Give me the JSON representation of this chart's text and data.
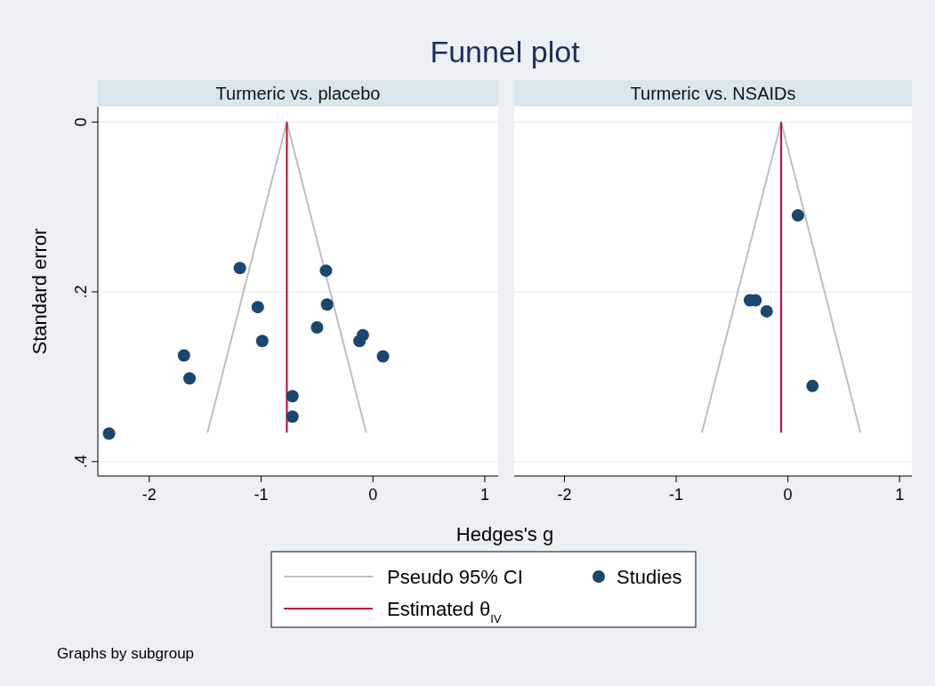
{
  "chart_data": [
    {
      "type": "scatter",
      "title": "Funnel plot",
      "subtitle": "Turmeric vs. placebo",
      "xlabel": "Hedges's g",
      "ylabel": "Standard error",
      "xlim": [
        -2.46,
        1.12
      ],
      "xticks": [
        -2,
        -1,
        0,
        1
      ],
      "ylim": [
        0.417,
        -0.018
      ],
      "yticks": [
        0,
        {
          "value": 0.2,
          "label": ".2"
        },
        {
          "value": 0.4,
          "label": ".4"
        }
      ],
      "grid": "y",
      "legend": "bottom",
      "annotations": [
        "Graphs by subgroup"
      ],
      "series": [
        {
          "name": "Pseudo 95% CI",
          "type": "line",
          "color": "#bfbfbf",
          "x": [
            -1.48,
            -0.77,
            -0.06
          ],
          "values": [
            0.366,
            0,
            0.366
          ]
        },
        {
          "name": "Estimated θ$_{IV}$",
          "type": "line",
          "color": "#c10534",
          "x": [
            -0.77,
            -0.77
          ],
          "values": [
            0,
            0.366
          ]
        },
        {
          "name": "Studies",
          "marker": "circle",
          "color": "#1a476f",
          "x": [
            -1.19,
            -0.42,
            -1.03,
            -0.41,
            -0.5,
            -0.99,
            -0.09,
            -0.12,
            0.09,
            -1.69,
            -1.64,
            -0.72,
            -0.72,
            -2.36
          ],
          "values": [
            0.172,
            0.175,
            0.218,
            0.215,
            0.242,
            0.258,
            0.251,
            0.258,
            0.276,
            0.275,
            0.302,
            0.323,
            0.347,
            0.367
          ]
        }
      ]
    },
    {
      "type": "scatter",
      "subtitle": "Turmeric vs. NSAIDs",
      "xlim": [
        -2.45,
        1.11
      ],
      "xticks": [
        -2,
        -1,
        0,
        1
      ],
      "ylim": [
        0.417,
        -0.018
      ],
      "yticks": [
        0,
        0.2,
        0.4
      ],
      "grid": "y",
      "tick_labels": "x",
      "series": [
        {
          "type": "line",
          "color": "#bfbfbf",
          "x": [
            -0.77,
            -0.06,
            0.65
          ],
          "values": [
            0.366,
            0,
            0.366
          ]
        },
        {
          "type": "line",
          "color": "#c10534",
          "x": [
            -0.06,
            -0.06
          ],
          "values": [
            0,
            0.366
          ]
        },
        {
          "marker": "circle",
          "color": "#1a476f",
          "x": [
            0.09,
            -0.34,
            -0.29,
            -0.19,
            0.22
          ],
          "values": [
            0.11,
            0.21,
            0.21,
            0.223,
            0.311
          ]
        }
      ]
    }
  ]
}
